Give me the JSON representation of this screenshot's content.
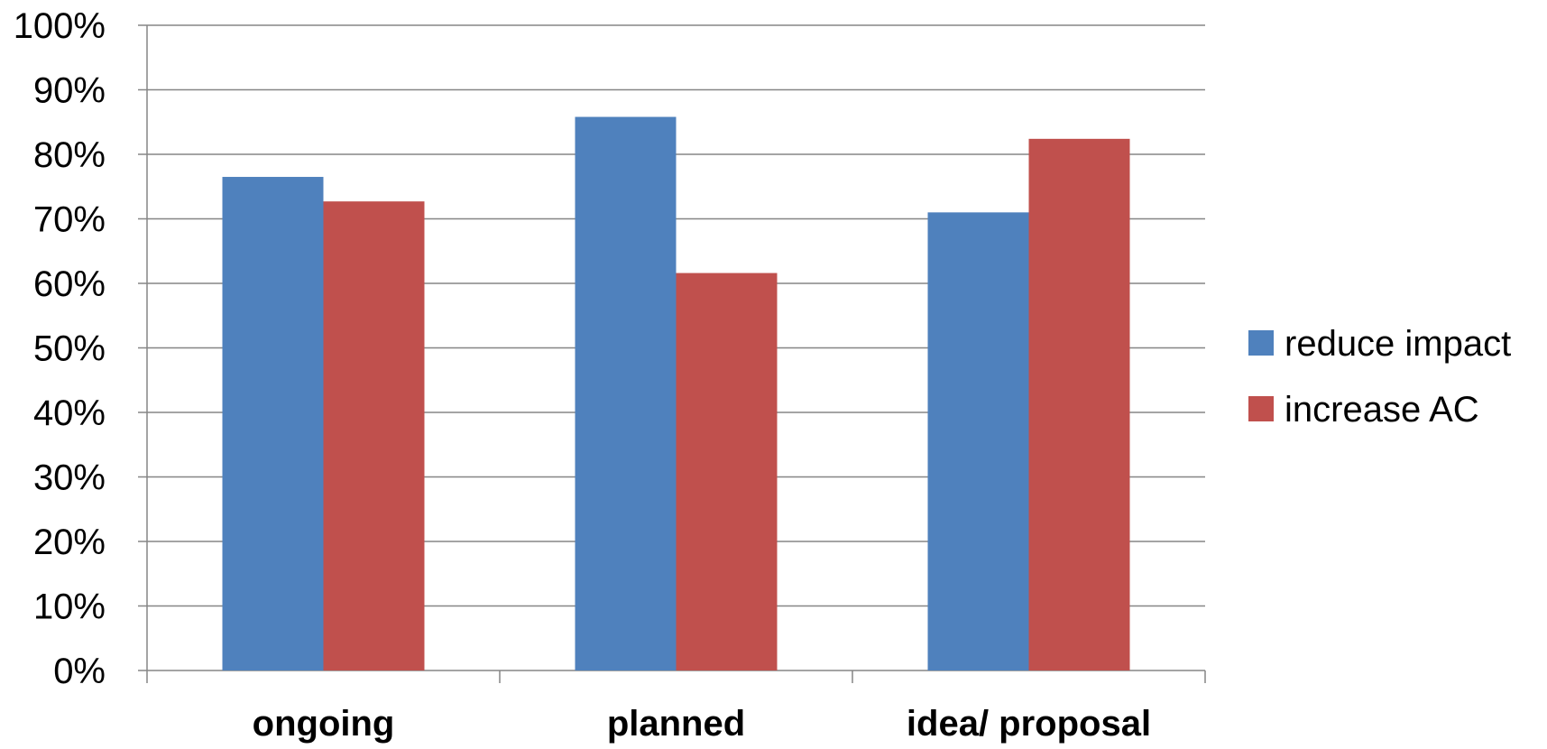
{
  "chart_data": {
    "type": "bar",
    "categories": [
      "ongoing",
      "planned",
      "idea/ proposal"
    ],
    "series": [
      {
        "name": "reduce impact",
        "values": [
          0.765,
          0.858,
          0.71
        ],
        "color": "#4f81bd"
      },
      {
        "name": "increase AC",
        "values": [
          0.727,
          0.616,
          0.824
        ],
        "color": "#c0504d"
      }
    ],
    "title": "",
    "xlabel": "",
    "ylabel": "",
    "ylim": [
      0,
      1
    ],
    "yticks": [
      0,
      0.1,
      0.2,
      0.3,
      0.4,
      0.5,
      0.6,
      0.7,
      0.8,
      0.9,
      1.0
    ],
    "ytick_labels": [
      "0%",
      "10%",
      "20%",
      "30%",
      "40%",
      "50%",
      "60%",
      "70%",
      "80%",
      "90%",
      "100%"
    ],
    "grid": true,
    "legend_position": "right",
    "gridline_color": "#868686",
    "axis_color": "#868686",
    "text_color": "#000000"
  }
}
